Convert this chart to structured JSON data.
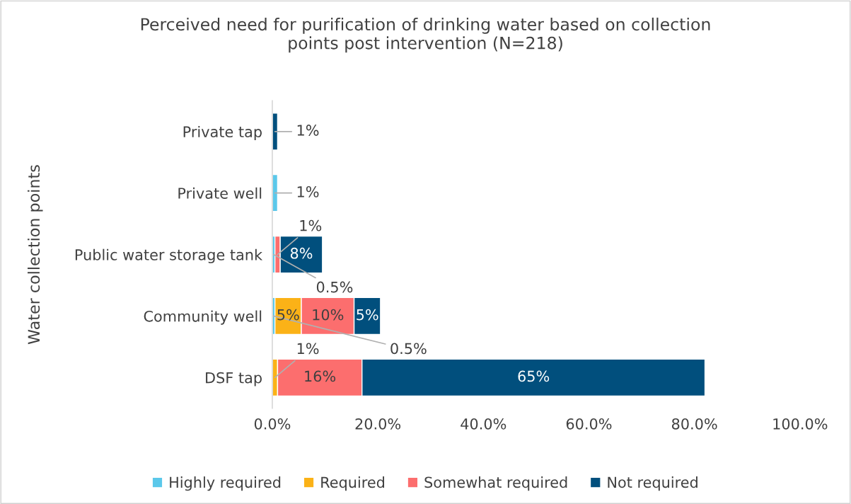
{
  "chart_data": {
    "type": "bar",
    "orientation": "horizontal",
    "stacked": true,
    "title": "Perceived need for purification of drinking water based on collection\npoints post intervention (N=218)",
    "ylabel": "Water collection points",
    "categories": [
      "Private tap",
      "Private well",
      "Public water storage tank",
      "Community well",
      "DSF tap"
    ],
    "series": [
      {
        "name": "Highly required",
        "color": "#5bc8ea",
        "values": [
          null,
          1,
          0.5,
          0.5,
          null
        ],
        "value_labels": [
          null,
          "1%",
          "0.5%",
          "0.5%",
          null
        ]
      },
      {
        "name": "Required",
        "color": "#fbb217",
        "values": [
          null,
          null,
          null,
          5,
          1
        ],
        "value_labels": [
          null,
          null,
          null,
          "5%",
          "1%"
        ]
      },
      {
        "name": "Somewhat required",
        "color": "#fc6e6e",
        "values": [
          null,
          null,
          1,
          10,
          16
        ],
        "value_labels": [
          null,
          null,
          "1%",
          "10%",
          "16%"
        ]
      },
      {
        "name": "Not required",
        "color": "#014f7d",
        "values": [
          1,
          null,
          8,
          5,
          65
        ],
        "value_labels": [
          "1%",
          null,
          "8%",
          "5%",
          "65%"
        ]
      }
    ],
    "xlim": [
      0,
      100
    ],
    "xticks": [
      {
        "value": 0,
        "label": "0.0%"
      },
      {
        "value": 20,
        "label": "20.0%"
      },
      {
        "value": 40,
        "label": "40.0%"
      },
      {
        "value": 60,
        "label": "60.0%"
      },
      {
        "value": 80,
        "label": "80.0%"
      },
      {
        "value": 100,
        "label": "100.0%"
      }
    ],
    "grid": false,
    "legend": "bottom"
  }
}
